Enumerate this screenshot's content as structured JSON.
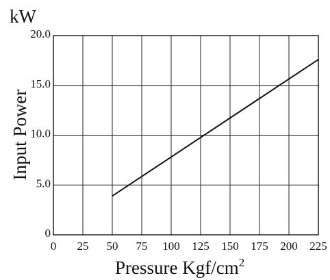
{
  "chart_data": {
    "type": "line",
    "unit_label": "kW",
    "ylabel": "Input Power",
    "xlabel": "Pressure Kgf/cm",
    "xlabel_superscript": "2",
    "xlim": [
      0,
      225
    ],
    "ylim": [
      0,
      20
    ],
    "x_ticks": [
      0,
      25,
      50,
      75,
      100,
      125,
      150,
      175,
      200,
      225
    ],
    "x_tick_labels": [
      "0",
      "25",
      "50",
      "75",
      "100",
      "125",
      "150",
      "175",
      "200",
      "225"
    ],
    "y_ticks": [
      0,
      5,
      10,
      15,
      20
    ],
    "y_tick_labels": [
      "0",
      "5.0",
      "10.0",
      "15.0",
      "20.0"
    ],
    "grid": true,
    "series": [
      {
        "x": [
          50,
          225
        ],
        "y": [
          3.9,
          17.6
        ]
      }
    ]
  }
}
